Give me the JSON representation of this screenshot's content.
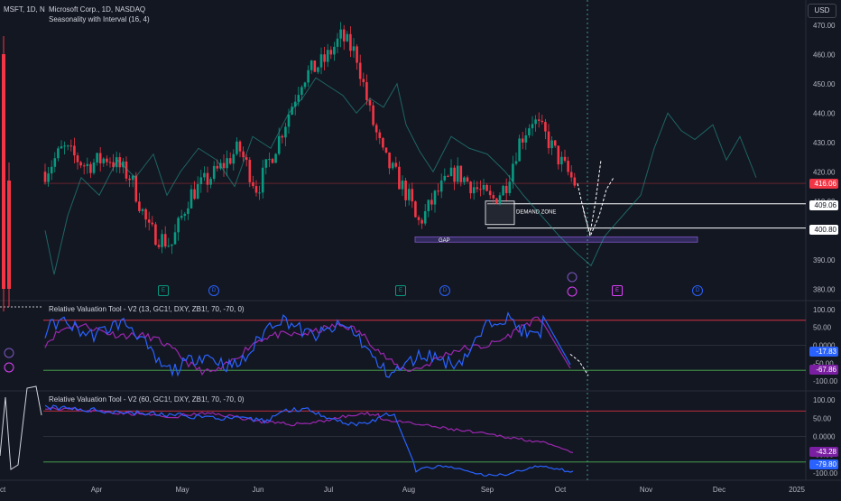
{
  "header": {
    "symbol_line": "MSFT, 1D, N",
    "main_title": "Microsoft Corp., 1D, NASDAQ",
    "indicator1": "Seasonality with Interval (16, 4)",
    "currency": "USD"
  },
  "osc1": {
    "title": "Relative Valuation Tool - V2 (13, GC1!, DXY, ZB1!, 70, -70, 0)"
  },
  "osc2": {
    "title": "Relative Valuation Tool - V2 (60, GC1!, DXY, ZB1!, 70, -70, 0)"
  },
  "zones": {
    "demand": "DEMAND ZONE",
    "gap": "GAP"
  },
  "event_markers": {
    "earnings": "E",
    "dividend": "D"
  },
  "price_tags": {
    "current": "416.06",
    "level1": "409.06",
    "level2": "400.80",
    "osc1_blue": "-17.83",
    "osc1_purple": "-67.86",
    "osc2_purple": "-43.28",
    "osc2_blue": "-79.80"
  },
  "colors": {
    "bg": "#131722",
    "up": "#089981",
    "down": "#f23645",
    "blue": "#2962ff",
    "purple": "#9c27b0",
    "red_line": "#f23645",
    "green_line": "#4caf50"
  },
  "chart_data": [
    {
      "type": "candlestick",
      "title": "Microsoft Corp., 1D, NASDAQ",
      "y_ticks": [
        "470.00",
        "460.00",
        "450.00",
        "440.00",
        "430.00",
        "420.00",
        "410.00",
        "400.00",
        "390.00",
        "380.00"
      ],
      "ylim": [
        377,
        473
      ],
      "x_ticks": [
        "ct",
        "Apr",
        "May",
        "Jun",
        "Jul",
        "Aug",
        "Sep",
        "Oct",
        "Nov",
        "Dec",
        "2025"
      ],
      "last_price": 416.06,
      "levels": [
        409.06,
        400.8
      ],
      "series": [
        {
          "name": "MSFT",
          "ohlc_monthly_approx": [
            {
              "period": "Mar",
              "open": 410,
              "high": 430,
              "low": 400,
              "close": 420
            },
            {
              "period": "Apr",
              "open": 420,
              "high": 430,
              "low": 394,
              "close": 405
            },
            {
              "period": "May",
              "open": 405,
              "high": 432,
              "low": 396,
              "close": 425
            },
            {
              "period": "Jun",
              "open": 425,
              "high": 452,
              "low": 420,
              "close": 450
            },
            {
              "period": "Jul",
              "open": 450,
              "high": 468,
              "low": 422,
              "close": 423
            },
            {
              "period": "Aug",
              "open": 423,
              "high": 425,
              "low": 386,
              "close": 415
            },
            {
              "period": "Sep",
              "open": 415,
              "high": 441,
              "low": 402,
              "close": 430
            },
            {
              "period": "Oct",
              "open": 430,
              "high": 431,
              "low": 415,
              "close": 416
            }
          ]
        }
      ]
    },
    {
      "type": "line",
      "title": "Relative Valuation Tool - V2 (13, GC1!, DXY, ZB1!, 70, -70, 0)",
      "y_ticks": [
        "100.00",
        "50.00",
        "0.0000",
        "-50.00",
        "-100.00"
      ],
      "ylim": [
        -120,
        120
      ],
      "thresholds": [
        70,
        -70
      ],
      "series": [
        {
          "name": "blue",
          "last": -17.83
        },
        {
          "name": "purple",
          "last": -67.86
        }
      ]
    },
    {
      "type": "line",
      "title": "Relative Valuation Tool - V2 (60, GC1!, DXY, ZB1!, 70, -70, 0)",
      "y_ticks": [
        "100.00",
        "50.00",
        "0.0000",
        "-50.00",
        "-100.00"
      ],
      "ylim": [
        -115,
        120
      ],
      "thresholds": [
        70,
        -70
      ],
      "series": [
        {
          "name": "purple",
          "last": -43.28
        },
        {
          "name": "blue",
          "last": -79.8
        }
      ]
    }
  ]
}
